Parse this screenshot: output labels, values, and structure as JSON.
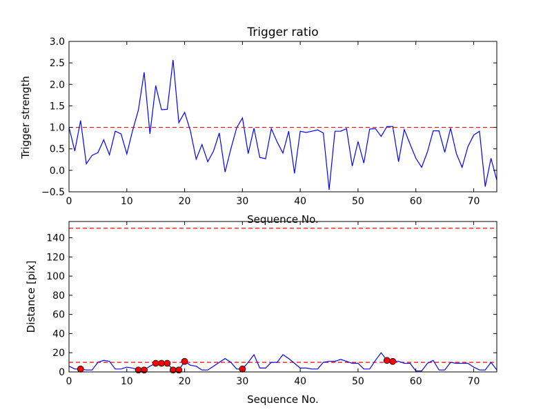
{
  "chart_data": [
    {
      "type": "line",
      "title": "Trigger ratio",
      "xlabel": "Sequence No.",
      "ylabel": "Trigger strength",
      "xlim": [
        0,
        74
      ],
      "ylim": [
        -0.5,
        3.0
      ],
      "xticks": [
        0,
        10,
        20,
        30,
        40,
        50,
        60,
        70
      ],
      "yticks": [
        -0.5,
        0.0,
        0.5,
        1.0,
        1.5,
        2.0,
        2.5,
        3.0
      ],
      "xtick_labels": [
        "0",
        "10",
        "20",
        "30",
        "40",
        "50",
        "60",
        "70"
      ],
      "ytick_labels": [
        "−0.5",
        "0.0",
        "0.5",
        "1.0",
        "1.5",
        "2.0",
        "2.5",
        "3.0"
      ],
      "grid": false,
      "colors": {
        "line": "#0000ff",
        "threshold": "#ff0000"
      },
      "threshold": 1.0,
      "x": [
        0,
        1,
        2,
        3,
        4,
        5,
        6,
        7,
        8,
        9,
        10,
        11,
        12,
        13,
        14,
        15,
        16,
        17,
        18,
        19,
        20,
        21,
        22,
        23,
        24,
        25,
        26,
        27,
        28,
        29,
        30,
        31,
        32,
        33,
        34,
        35,
        36,
        37,
        38,
        39,
        40,
        41,
        42,
        43,
        44,
        45,
        46,
        47,
        48,
        49,
        50,
        51,
        52,
        53,
        54,
        55,
        56,
        57,
        58,
        59,
        60,
        61,
        62,
        63,
        64,
        65,
        66,
        67,
        68,
        69,
        70,
        71,
        72,
        73,
        74
      ],
      "y": [
        1.0,
        0.45,
        1.16,
        0.15,
        0.35,
        0.41,
        0.71,
        0.36,
        0.91,
        0.85,
        0.38,
        0.93,
        1.4,
        2.28,
        0.85,
        1.97,
        1.41,
        1.42,
        2.57,
        1.11,
        1.35,
        0.92,
        0.26,
        0.6,
        0.2,
        0.45,
        0.87,
        -0.04,
        0.5,
        0.99,
        1.22,
        0.39,
        0.98,
        0.3,
        0.27,
        0.97,
        0.66,
        0.4,
        0.91,
        -0.07,
        0.91,
        0.88,
        0.91,
        0.94,
        0.87,
        -0.45,
        0.91,
        0.91,
        0.97,
        0.1,
        0.67,
        0.17,
        0.96,
        0.97,
        0.79,
        1.02,
        1.02,
        0.2,
        0.95,
        0.61,
        0.28,
        0.07,
        0.43,
        0.92,
        0.92,
        0.42,
        0.98,
        0.39,
        0.07,
        0.55,
        0.82,
        0.91,
        -0.38,
        0.28,
        -0.23
      ]
    },
    {
      "type": "line",
      "title": "",
      "xlabel": "Sequence No.",
      "ylabel": "Distance [pix]",
      "xlim": [
        0,
        74
      ],
      "ylim": [
        0,
        157
      ],
      "xticks": [
        0,
        10,
        20,
        30,
        40,
        50,
        60,
        70
      ],
      "yticks": [
        0,
        20,
        40,
        60,
        80,
        100,
        120,
        140
      ],
      "xtick_labels": [
        "0",
        "10",
        "20",
        "30",
        "40",
        "50",
        "60",
        "70"
      ],
      "ytick_labels": [
        "0",
        "20",
        "40",
        "60",
        "80",
        "100",
        "120",
        "140"
      ],
      "grid": false,
      "colors": {
        "line": "#0000ff",
        "threshold": "#ff0000",
        "marker": "#ff0000"
      },
      "thresholds": [
        10,
        150
      ],
      "x": [
        0,
        1,
        2,
        3,
        4,
        5,
        6,
        7,
        8,
        9,
        10,
        11,
        12,
        13,
        14,
        15,
        16,
        17,
        18,
        19,
        20,
        21,
        22,
        23,
        24,
        25,
        26,
        27,
        28,
        29,
        30,
        31,
        32,
        33,
        34,
        35,
        36,
        37,
        38,
        39,
        40,
        41,
        42,
        43,
        44,
        45,
        46,
        47,
        48,
        49,
        50,
        51,
        52,
        53,
        54,
        55,
        56,
        57,
        58,
        59,
        60,
        61,
        62,
        63,
        64,
        65,
        66,
        67,
        68,
        69,
        70,
        71,
        72,
        73,
        74
      ],
      "y": [
        6,
        3,
        3,
        2,
        2,
        10,
        12,
        11,
        3,
        3,
        5,
        4,
        2,
        2,
        6,
        9,
        9,
        9,
        2,
        2,
        11,
        7,
        6,
        2,
        2,
        6,
        10,
        14,
        10,
        3,
        3,
        10,
        18,
        4,
        4,
        10,
        10,
        18,
        14,
        9,
        4,
        4,
        3,
        3,
        10,
        11,
        11,
        13,
        11,
        9,
        9,
        3,
        3,
        12,
        20,
        12,
        11,
        11,
        9,
        9,
        1,
        1,
        9,
        12,
        2,
        2,
        10,
        9,
        9,
        9,
        5,
        2,
        2,
        10,
        2
      ],
      "highlighted_points": {
        "x": [
          2,
          12,
          13,
          15,
          16,
          17,
          18,
          19,
          20,
          30,
          55,
          56
        ],
        "y": [
          3,
          2,
          2,
          9,
          9,
          9,
          2,
          2,
          11,
          3,
          12,
          11
        ]
      }
    }
  ]
}
